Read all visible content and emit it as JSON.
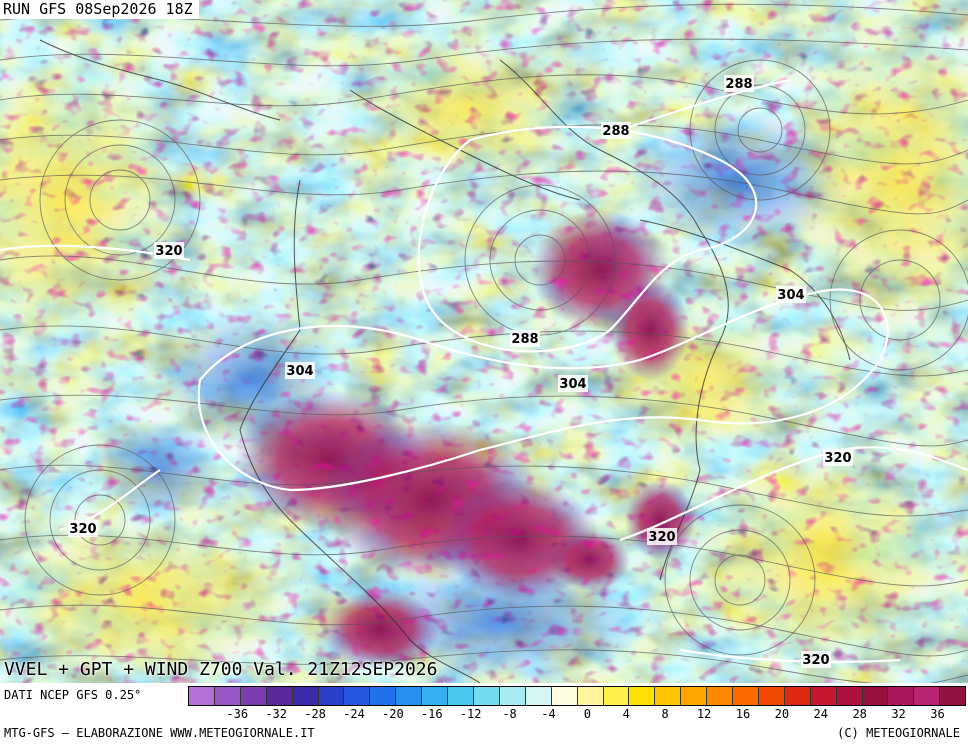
{
  "header": {
    "run_label": "RUN GFS 08Sep2026 18Z"
  },
  "map": {
    "title": "VVEL + GPT + WIND Z700 Val. 21Z12SEP2026",
    "contour_labels": [
      "288",
      "288",
      "320",
      "304",
      "304",
      "288",
      "304",
      "320",
      "320",
      "320",
      "320"
    ]
  },
  "legend": {
    "source": "DATI NCEP GFS 0.25°",
    "ticks": [
      "-36",
      "-32",
      "-28",
      "-24",
      "-20",
      "-16",
      "-12",
      "-8",
      "-4",
      "0",
      "4",
      "8",
      "12",
      "16",
      "20",
      "24",
      "28",
      "32",
      "36"
    ],
    "colors": [
      "#b46fd6",
      "#9656c4",
      "#7a3eb0",
      "#5a2a9c",
      "#3a2ba8",
      "#2a3fc8",
      "#2456e0",
      "#1f72ec",
      "#2a90f0",
      "#35aef2",
      "#4cc8f0",
      "#72dcee",
      "#a6ecf2",
      "#d6f6f6",
      "#fffde0",
      "#fff59a",
      "#fff04a",
      "#ffe100",
      "#ffc400",
      "#ffa600",
      "#ff8800",
      "#ff6a00",
      "#f04800",
      "#de2a10",
      "#c81830",
      "#b0103e",
      "#98103e",
      "#a8185a",
      "#b8226e",
      "#901040"
    ]
  },
  "footer": {
    "credit_left": "MTG-GFS – ELABORAZIONE WWW.METEOGIORNALE.IT",
    "credit_right": "(C) METEOGIORNALE"
  }
}
